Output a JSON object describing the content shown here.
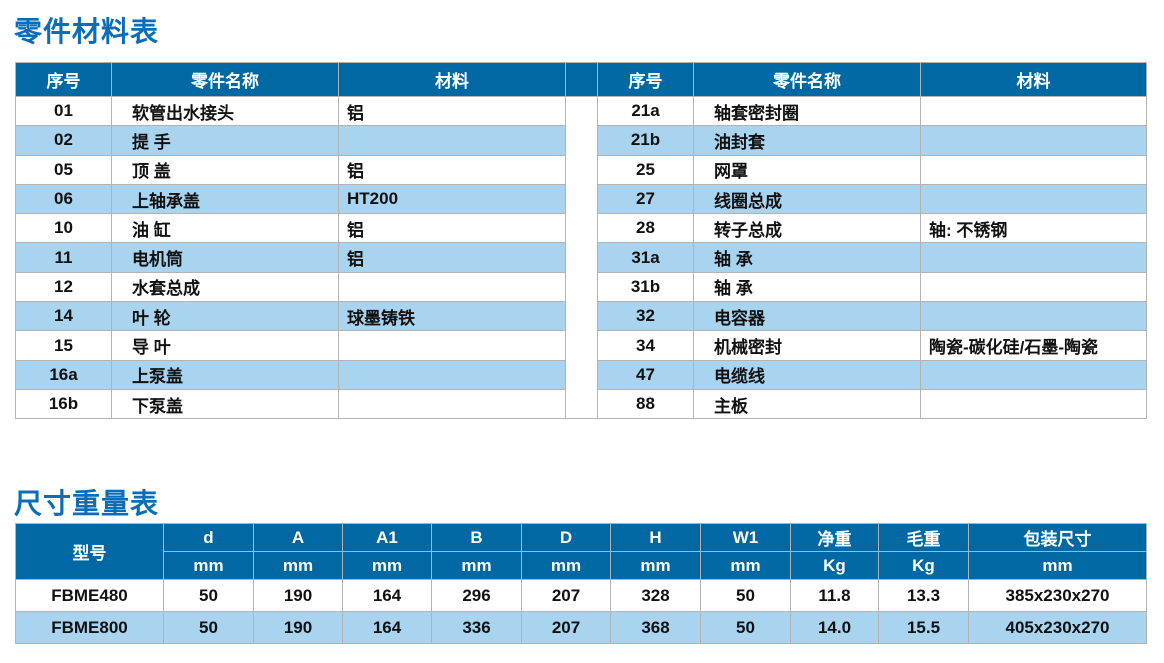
{
  "parts": {
    "title": "零件材料表",
    "headers": [
      "序号",
      "零件名称",
      "材料"
    ],
    "left": [
      [
        "01",
        "软管出水接头",
        "铝"
      ],
      [
        "02",
        "提 手",
        ""
      ],
      [
        "05",
        "顶 盖",
        "铝"
      ],
      [
        "06",
        "上轴承盖",
        "HT200"
      ],
      [
        "10",
        "油 缸",
        "铝"
      ],
      [
        "11",
        "电机筒",
        "铝"
      ],
      [
        "12",
        "水套总成",
        ""
      ],
      [
        "14",
        "叶 轮",
        "球墨铸铁"
      ],
      [
        "15",
        "导 叶",
        ""
      ],
      [
        "16a",
        "上泵盖",
        ""
      ],
      [
        "16b",
        "下泵盖",
        ""
      ]
    ],
    "right": [
      [
        "21a",
        "轴套密封圈",
        ""
      ],
      [
        "21b",
        "油封套",
        ""
      ],
      [
        "25",
        "网罩",
        ""
      ],
      [
        "27",
        "线圈总成",
        ""
      ],
      [
        "28",
        "转子总成",
        "轴: 不锈钢"
      ],
      [
        "31a",
        "轴 承",
        ""
      ],
      [
        "31b",
        "轴 承",
        ""
      ],
      [
        "32",
        "电容器",
        ""
      ],
      [
        "34",
        "机械密封",
        "陶瓷-碳化硅/石墨-陶瓷"
      ],
      [
        "47",
        "电缆线",
        ""
      ],
      [
        "88",
        "主板",
        ""
      ]
    ]
  },
  "dims": {
    "title": "尺寸重量表",
    "model_header": "型号",
    "headers": [
      [
        "d",
        "mm"
      ],
      [
        "A",
        "mm"
      ],
      [
        "A1",
        "mm"
      ],
      [
        "B",
        "mm"
      ],
      [
        "D",
        "mm"
      ],
      [
        "H",
        "mm"
      ],
      [
        "W1",
        "mm"
      ],
      [
        "净重",
        "Kg"
      ],
      [
        "毛重",
        "Kg"
      ],
      [
        "包装尺寸",
        "mm"
      ]
    ],
    "rows": [
      [
        "FBME480",
        "50",
        "190",
        "164",
        "296",
        "207",
        "328",
        "50",
        "11.8",
        "13.3",
        "385x230x270"
      ],
      [
        "FBME800",
        "50",
        "190",
        "164",
        "336",
        "207",
        "368",
        "50",
        "14.0",
        "15.5",
        "405x230x270"
      ]
    ]
  },
  "colors": {
    "header": "#0068a3",
    "alt_row": "#a9d4f0",
    "title": "#0b6db5"
  }
}
